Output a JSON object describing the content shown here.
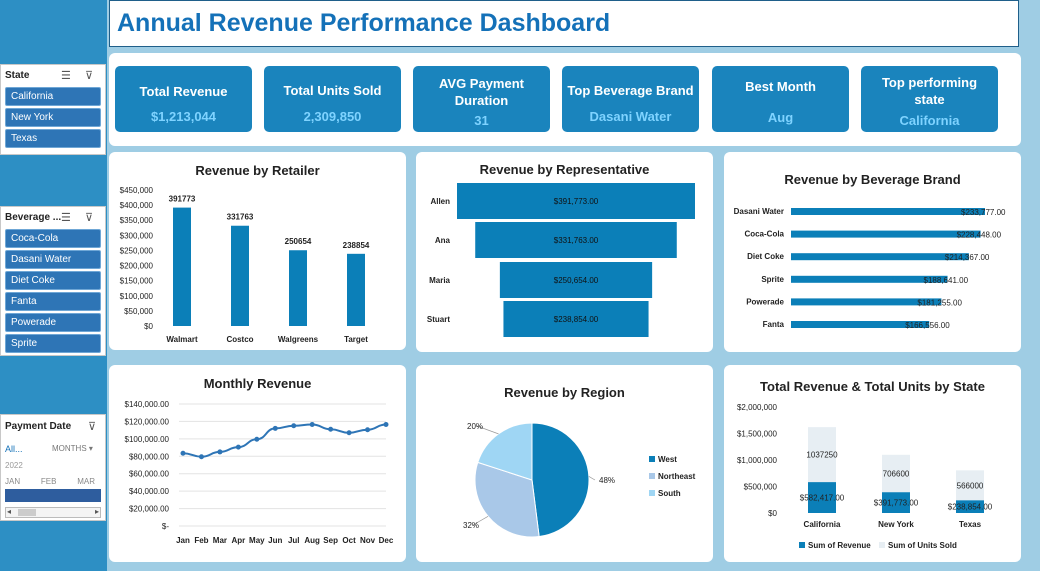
{
  "title": "Annual Revenue Performance Dashboard",
  "colors": {
    "accent": "#1a84bd",
    "bar": "#0b7fb8",
    "light": "#a9c8e8",
    "sky": "#9fd6f4"
  },
  "slicers": {
    "state": {
      "label": "State",
      "items": [
        "California",
        "New York",
        "Texas"
      ]
    },
    "brand": {
      "label": "Beverage ...",
      "items": [
        "Coca-Cola",
        "Dasani Water",
        "Diet Coke",
        "Fanta",
        "Powerade",
        "Sprite"
      ]
    },
    "payment": {
      "label": "Payment Date",
      "all": "All...",
      "months": "MONTHS",
      "year": "2022",
      "month_labels": [
        "JAN",
        "FEB",
        "MAR"
      ]
    }
  },
  "kpis": [
    {
      "label": "Total Revenue",
      "value": "$1,213,044"
    },
    {
      "label": "Total Units Sold",
      "value": "2,309,850"
    },
    {
      "label": "AVG Payment Duration",
      "value": "31"
    },
    {
      "label": "Top Beverage Brand",
      "value": "Dasani Water"
    },
    {
      "label": "Best Month",
      "value": "Aug"
    },
    {
      "label": "Top performing state",
      "value": "California"
    }
  ],
  "chart_data": [
    {
      "type": "bar",
      "title": "Revenue by Retailer",
      "categories": [
        "Walmart",
        "Costco",
        "Walgreens",
        "Target"
      ],
      "values": [
        391773,
        331763,
        250654,
        238854
      ],
      "data_labels": [
        "391773",
        "331763",
        "250654",
        "238854"
      ],
      "yticks": [
        "$450,000",
        "$400,000",
        "$350,000",
        "$300,000",
        "$250,000",
        "$200,000",
        "$150,000",
        "$100,000",
        "$50,000",
        "$0"
      ],
      "ylim": [
        0,
        450000
      ]
    },
    {
      "type": "bar",
      "title": "Revenue by Representative",
      "categories": [
        "Allen",
        "Ana",
        "Maria",
        "Stuart"
      ],
      "values": [
        391773,
        331763,
        250654,
        238854
      ],
      "data_labels": [
        "$391,773.00",
        "$331,763.00",
        "$250,654.00",
        "$238,854.00"
      ]
    },
    {
      "type": "bar",
      "title": "Revenue by Beverage Brand",
      "categories": [
        "Dasani Water",
        "Coca-Cola",
        "Diet Coke",
        "Sprite",
        "Powerade",
        "Fanta"
      ],
      "values": [
        233777,
        228448,
        214367,
        188641,
        181255,
        166556
      ],
      "data_labels": [
        "$233,777.00",
        "$228,448.00",
        "$214,367.00",
        "$188,641.00",
        "$181,255.00",
        "$166,556.00"
      ]
    },
    {
      "type": "line",
      "title": "Monthly Revenue",
      "categories": [
        "Jan",
        "Feb",
        "Mar",
        "Apr",
        "May",
        "Jun",
        "Jul",
        "Aug",
        "Sep",
        "Oct",
        "Nov",
        "Dec"
      ],
      "values": [
        83500,
        79500,
        85000,
        90500,
        99500,
        112000,
        115000,
        116500,
        111000,
        107000,
        110500,
        116500
      ],
      "yticks": [
        "$140,000.00",
        "$120,000.00",
        "$100,000.00",
        "$80,000.00",
        "$60,000.00",
        "$40,000.00",
        "$20,000.00",
        "$-"
      ],
      "ylim": [
        0,
        140000
      ]
    },
    {
      "type": "pie",
      "title": "Revenue by Region",
      "categories": [
        "West",
        "Northeast",
        "South"
      ],
      "values": [
        48,
        32,
        20
      ],
      "data_labels": [
        "48%",
        "32%",
        "20%"
      ],
      "legend": "right"
    },
    {
      "type": "bar",
      "title": "Total Revenue & Total Units by State",
      "categories": [
        "California",
        "New York",
        "Texas"
      ],
      "series": [
        {
          "name": "Sum of Revenue",
          "values": [
            582417,
            391773,
            238854
          ],
          "data_labels": [
            "$582,417.00",
            "$391,773.00",
            "$238,854.00"
          ]
        },
        {
          "name": "Sum of Units Sold",
          "values": [
            1037250,
            706600,
            566000
          ],
          "data_labels": [
            "1037250",
            "706600",
            "566000"
          ]
        }
      ],
      "yticks": [
        "$2,000,000",
        "$1,500,000",
        "$1,000,000",
        "$500,000",
        "$0"
      ],
      "ylim": [
        0,
        2000000
      ],
      "legend": "bottom"
    }
  ]
}
